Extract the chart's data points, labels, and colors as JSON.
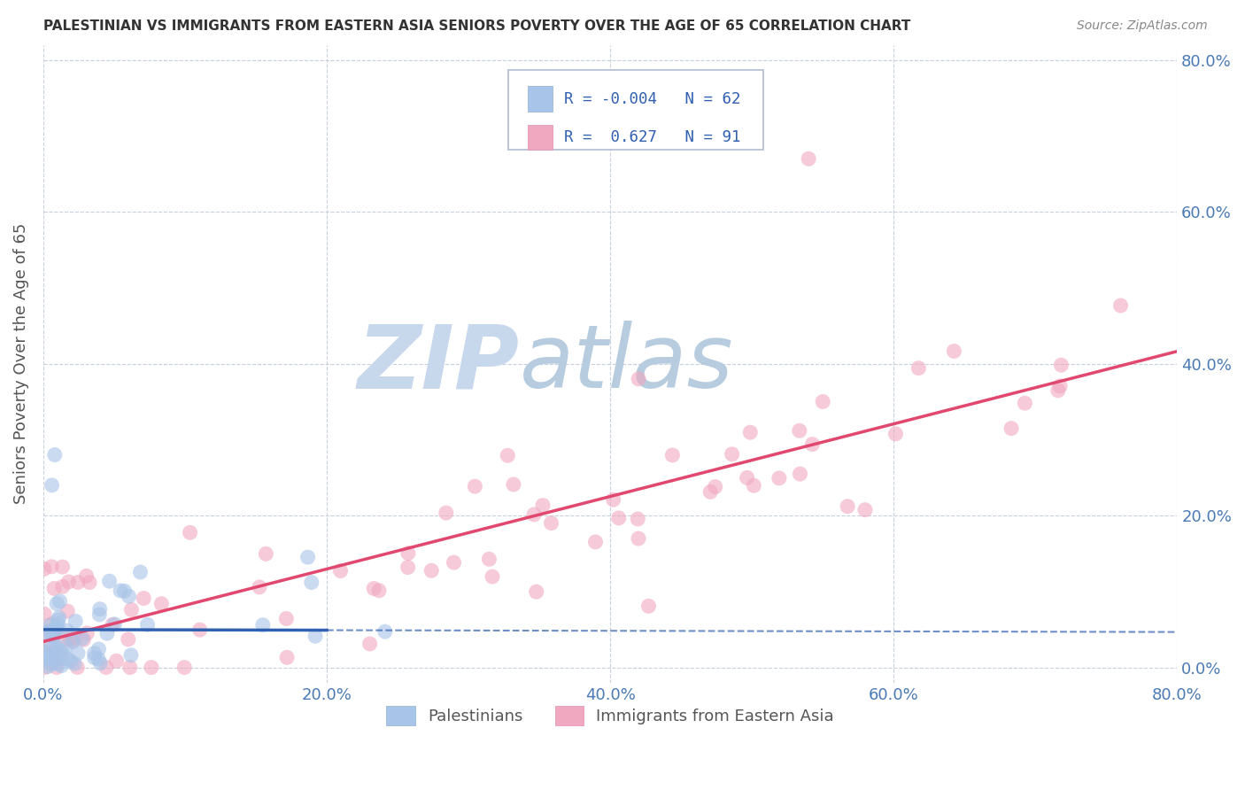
{
  "title": "PALESTINIAN VS IMMIGRANTS FROM EASTERN ASIA SENIORS POVERTY OVER THE AGE OF 65 CORRELATION CHART",
  "source": "Source: ZipAtlas.com",
  "ylabel": "Seniors Poverty Over the Age of 65",
  "series1_label": "Palestinians",
  "series2_label": "Immigrants from Eastern Asia",
  "series1_color": "#a8c4e8",
  "series2_color": "#f0a8c0",
  "series1_line_color": "#3060b0",
  "series2_line_color": "#e04870",
  "R1": -0.004,
  "N1": 62,
  "R2": 0.627,
  "N2": 91,
  "background_color": "#ffffff",
  "watermark_zip": "ZIP",
  "watermark_atlas": "atlas",
  "watermark_color_zip": "#c8d8ec",
  "watermark_color_atlas": "#b8cce0",
  "title_color": "#333333",
  "source_color": "#888888",
  "tick_color": "#4a7ab5",
  "ylabel_color": "#555555",
  "grid_color": "#c8d0dc",
  "legend_edge_color": "#b0bcd0",
  "legend_text_color": "#3060b0"
}
